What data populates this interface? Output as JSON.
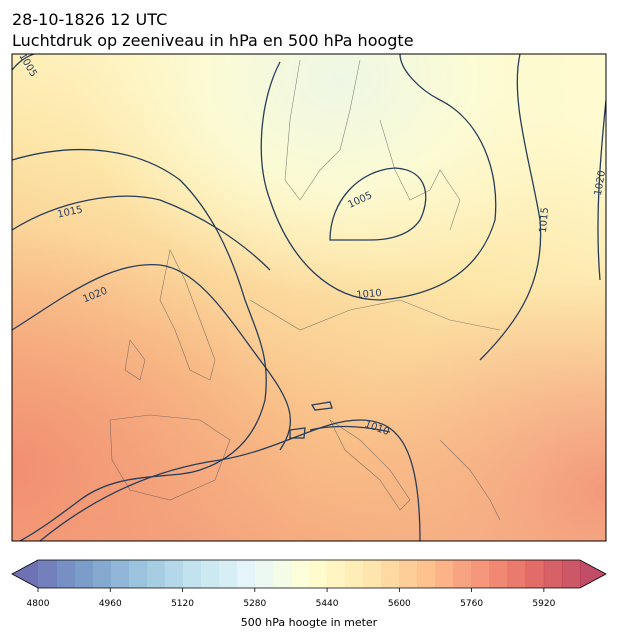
{
  "header": {
    "title": "28-10-1826 12 UTC",
    "subtitle": "Luchtdruk op zeeniveau in hPa en 500 hPa hoogte"
  },
  "map": {
    "contour_labels": [
      "1005",
      "1015",
      "1020",
      "1005",
      "1010",
      "1015",
      "1020",
      "1010"
    ]
  },
  "colorbar": {
    "label": "500 hPa hoogte in meter",
    "lim": [
      4800,
      6000
    ],
    "step": 40,
    "ticks": [
      4800,
      4960,
      5120,
      5280,
      5440,
      5600,
      5760,
      5920
    ]
  }
}
